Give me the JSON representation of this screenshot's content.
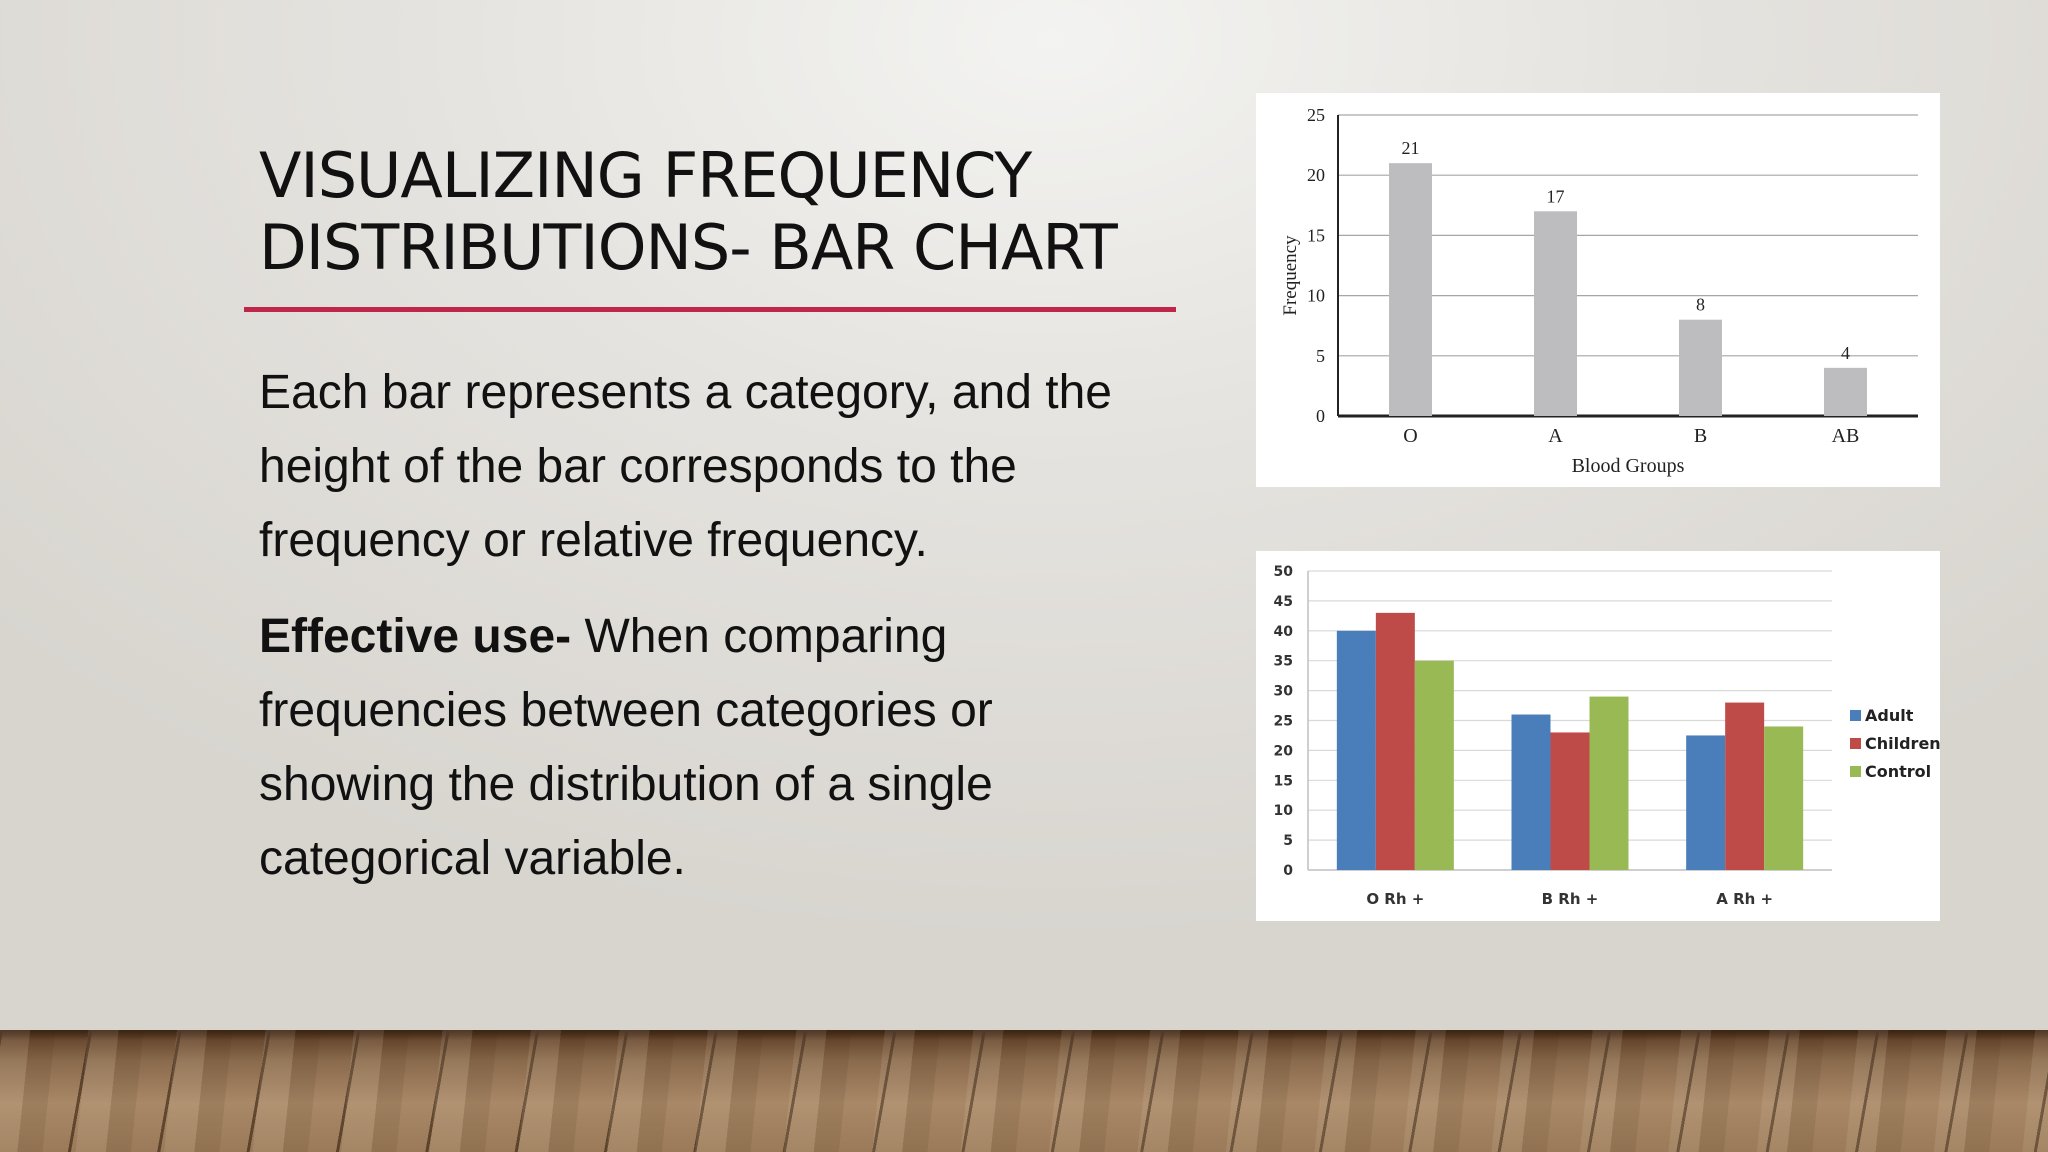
{
  "slide": {
    "title_line1": "VISUALIZING FREQUENCY",
    "title_line2": "DISTRIBUTIONS- BAR CHART",
    "paragraph1": "Each bar represents a category, and the height of the bar corresponds to the frequency or relative frequency.",
    "paragraph2_bold": "Effective use-",
    "paragraph2_rest": " When comparing frequencies between categories or showing the distribution of a single categorical variable.",
    "accent_color": "#c0254a"
  },
  "chart_data": [
    {
      "type": "bar",
      "categories": [
        "O",
        "A",
        "B",
        "AB"
      ],
      "values": [
        21,
        17,
        8,
        4
      ],
      "data_labels": [
        "21",
        "17",
        "8",
        "4"
      ],
      "xlabel": "Blood Groups",
      "ylabel": "Frequency",
      "ylim": [
        0,
        25
      ],
      "yticks": [
        0,
        5,
        10,
        15,
        20,
        25
      ],
      "grid": true,
      "bar_color": "#bdbdc0"
    },
    {
      "type": "bar",
      "categories": [
        "O Rh +",
        "B Rh +",
        "A Rh +"
      ],
      "series": [
        {
          "name": "Adult",
          "values": [
            40,
            26,
            22.5
          ],
          "color": "#4a7ebb"
        },
        {
          "name": "Children",
          "values": [
            43,
            23,
            28
          ],
          "color": "#be4b48"
        },
        {
          "name": "Control",
          "values": [
            35,
            29,
            24
          ],
          "color": "#98b954"
        }
      ],
      "ylim": [
        0,
        50
      ],
      "yticks": [
        0,
        5,
        10,
        15,
        20,
        25,
        30,
        35,
        40,
        45,
        50
      ],
      "grid": true,
      "legend": "right"
    }
  ]
}
